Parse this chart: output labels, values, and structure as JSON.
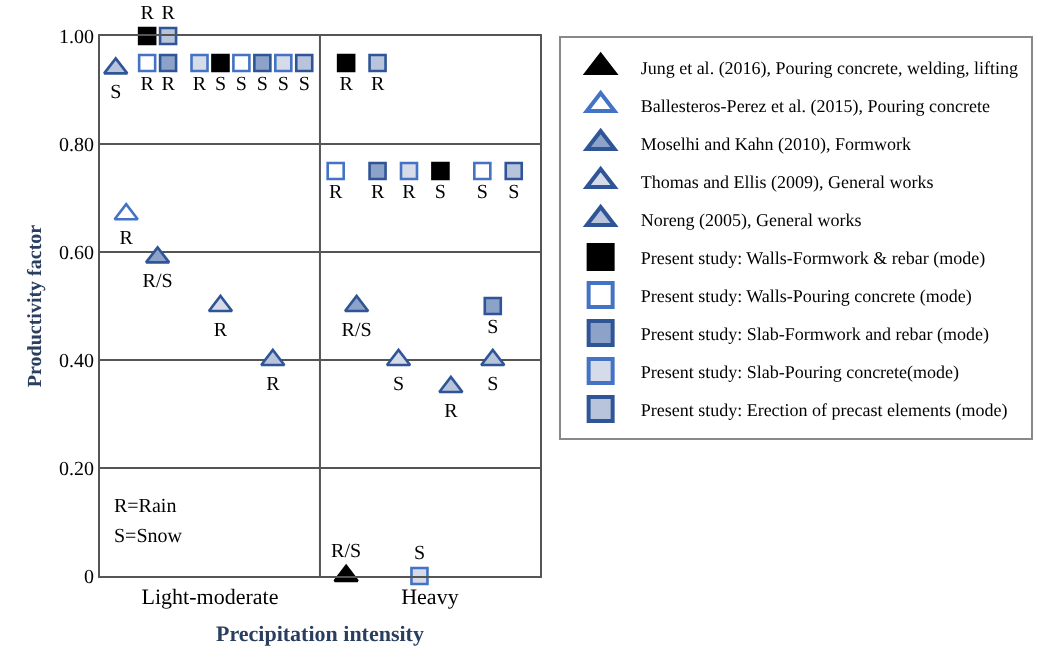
{
  "chart_data": {
    "type": "scatter",
    "xlabel": "Precipitation intensity",
    "ylabel": "Productivity factor",
    "categories": [
      null,
      null,
      null,
      null,
      null,
      null,
      null,
      null,
      null,
      null,
      "Light-moderate",
      null,
      null,
      null,
      null,
      null,
      null,
      null,
      null,
      null,
      null,
      null,
      null,
      null,
      null,
      null,
      null,
      null,
      null,
      null,
      null,
      "Heavy",
      null,
      null,
      null,
      null,
      null,
      null,
      null,
      null,
      null,
      null
    ],
    "ylim": [
      0,
      1
    ],
    "yticks": [
      {
        "value": 0,
        "label": "0"
      },
      {
        "value": 0.2,
        "label": "0.20"
      },
      {
        "value": 0.4,
        "label": "0.40"
      },
      {
        "value": 0.6,
        "label": "0.60"
      },
      {
        "value": 0.8,
        "label": "0.80"
      },
      {
        "value": 1.0,
        "label": "1.00"
      }
    ],
    "grid": "y",
    "legend": "right",
    "annotations": [
      "R=Rain",
      "S=Snow"
    ],
    "series": [
      {
        "name": "Jung et al. (2016), Pouring concrete, welding, lifting",
        "marker": "triangle",
        "color": "#000000",
        "values": [
          null,
          null,
          null,
          null,
          null,
          null,
          null,
          null,
          null,
          null,
          null,
          null,
          null,
          null,
          null,
          null,
          null,
          null,
          null,
          null,
          null,
          null,
          null,
          0,
          null,
          null,
          null,
          null,
          null,
          null,
          null,
          null,
          null,
          null,
          null,
          null,
          null,
          null,
          null,
          null,
          null,
          null
        ],
        "value_labels": [
          null,
          null,
          null,
          null,
          null,
          null,
          null,
          null,
          null,
          null,
          null,
          null,
          null,
          null,
          null,
          null,
          null,
          null,
          null,
          null,
          null,
          null,
          null,
          "R/S",
          null,
          null,
          null,
          null,
          null,
          null,
          null,
          null,
          null,
          null,
          null,
          null,
          null,
          null,
          null,
          null,
          null,
          null
        ]
      },
      {
        "name": "Ballesteros-Perez et al. (2015), Pouring concrete",
        "marker": "triangle",
        "color": "#4472c4",
        "values": [
          null,
          null,
          0.67,
          null,
          null,
          null,
          null,
          null,
          null,
          null,
          null,
          null,
          null,
          null,
          null,
          null,
          null,
          null,
          null,
          null,
          null,
          null,
          null,
          null,
          null,
          null,
          null,
          null,
          null,
          null,
          null,
          null,
          null,
          null,
          null,
          null,
          null,
          null,
          null,
          null,
          null,
          null
        ],
        "value_labels": [
          null,
          null,
          "R",
          null,
          null,
          null,
          null,
          null,
          null,
          null,
          null,
          null,
          null,
          null,
          null,
          null,
          null,
          null,
          null,
          null,
          null,
          null,
          null,
          null,
          null,
          null,
          null,
          null,
          null,
          null,
          null,
          null,
          null,
          null,
          null,
          null,
          null,
          null,
          null,
          null,
          null,
          null
        ]
      },
      {
        "name": "Moselhi and Kahn (2010), Formwork",
        "marker": "triangle",
        "color": "#2f5597",
        "values": [
          null,
          null,
          null,
          null,
          null,
          0.59,
          null,
          null,
          null,
          null,
          null,
          null,
          null,
          null,
          null,
          null,
          null,
          null,
          null,
          null,
          null,
          null,
          null,
          null,
          0.5,
          null,
          null,
          null,
          null,
          null,
          null,
          null,
          null,
          null,
          null,
          null,
          null,
          null,
          null,
          null,
          null,
          null
        ],
        "value_labels": [
          null,
          null,
          null,
          null,
          null,
          "R/S",
          null,
          null,
          null,
          null,
          null,
          null,
          null,
          null,
          null,
          null,
          null,
          null,
          null,
          null,
          null,
          null,
          null,
          null,
          "R/S",
          null,
          null,
          null,
          null,
          null,
          null,
          null,
          null,
          null,
          null,
          null,
          null,
          null,
          null,
          null,
          null,
          null
        ]
      },
      {
        "name": "Thomas and Ellis (2009), General works",
        "marker": "triangle",
        "color": "#2f5597",
        "values": [
          null,
          null,
          null,
          null,
          null,
          null,
          null,
          null,
          null,
          null,
          null,
          0.5,
          null,
          null,
          null,
          null,
          null,
          null,
          null,
          null,
          null,
          null,
          null,
          null,
          null,
          null,
          null,
          null,
          0.4,
          null,
          null,
          null,
          null,
          null,
          null,
          null,
          null,
          null,
          null,
          null,
          null,
          null
        ],
        "value_labels": [
          null,
          null,
          null,
          null,
          null,
          null,
          null,
          null,
          null,
          null,
          null,
          "R",
          null,
          null,
          null,
          null,
          null,
          null,
          null,
          null,
          null,
          null,
          null,
          null,
          null,
          null,
          null,
          null,
          "S",
          null,
          null,
          null,
          null,
          null,
          null,
          null,
          null,
          null,
          null,
          null,
          null,
          null
        ]
      },
      {
        "name": "Noreng (2005), General works",
        "marker": "triangle",
        "color": "#2f5597",
        "values": [
          null,
          0.94,
          null,
          null,
          null,
          null,
          null,
          null,
          null,
          null,
          null,
          null,
          null,
          null,
          null,
          null,
          0.4,
          null,
          null,
          null,
          null,
          null,
          null,
          null,
          null,
          null,
          null,
          null,
          null,
          null,
          null,
          null,
          null,
          0.35,
          null,
          null,
          null,
          0.4,
          null,
          null,
          null,
          null
        ],
        "value_labels": [
          null,
          "S",
          null,
          null,
          null,
          null,
          null,
          null,
          null,
          null,
          null,
          null,
          null,
          null,
          null,
          null,
          "R",
          null,
          null,
          null,
          null,
          null,
          null,
          null,
          null,
          null,
          null,
          null,
          null,
          null,
          null,
          null,
          null,
          "R",
          null,
          null,
          null,
          "S",
          null,
          null,
          null,
          null
        ]
      },
      {
        "name": "Present study: Walls-Formwork & rebar (mode)",
        "marker": "square",
        "color": "#000000",
        "values": [
          null,
          null,
          null,
          null,
          1.0,
          null,
          null,
          null,
          null,
          null,
          null,
          0.95,
          null,
          null,
          null,
          null,
          null,
          null,
          null,
          null,
          null,
          null,
          null,
          0.95,
          null,
          null,
          null,
          null,
          null,
          null,
          null,
          null,
          0.75,
          null,
          null,
          null,
          null,
          null,
          null,
          null,
          null,
          null
        ],
        "value_labels": [
          null,
          null,
          null,
          null,
          "R",
          null,
          null,
          null,
          null,
          null,
          null,
          "S",
          null,
          null,
          null,
          null,
          null,
          null,
          null,
          null,
          null,
          null,
          null,
          "R",
          null,
          null,
          null,
          null,
          null,
          null,
          null,
          null,
          "S",
          null,
          null,
          null,
          null,
          null,
          null,
          null,
          null,
          null
        ]
      },
      {
        "name": "Present study: Walls-Pouring concrete (mode)",
        "marker": "square",
        "color": "#4472c4",
        "values": [
          null,
          null,
          null,
          null,
          0.95,
          null,
          null,
          null,
          null,
          null,
          null,
          null,
          null,
          0.95,
          null,
          null,
          null,
          null,
          null,
          null,
          null,
          null,
          0.75,
          null,
          null,
          null,
          null,
          null,
          null,
          null,
          null,
          null,
          null,
          null,
          null,
          null,
          0.75,
          null,
          null,
          null,
          null,
          null
        ],
        "value_labels": [
          null,
          null,
          null,
          null,
          "R",
          null,
          null,
          null,
          null,
          null,
          null,
          null,
          null,
          "S",
          null,
          null,
          null,
          null,
          null,
          null,
          null,
          null,
          "R",
          null,
          null,
          null,
          null,
          null,
          null,
          null,
          null,
          null,
          null,
          null,
          null,
          null,
          "S",
          null,
          null,
          null,
          null,
          null
        ]
      },
      {
        "name": "Present study: Slab-Formwork and rebar (mode)",
        "marker": "square",
        "color": "#2f5597",
        "values": [
          null,
          null,
          null,
          null,
          null,
          null,
          0.95,
          null,
          null,
          null,
          null,
          null,
          null,
          null,
          null,
          0.95,
          null,
          null,
          null,
          null,
          null,
          null,
          null,
          null,
          null,
          null,
          0.75,
          null,
          null,
          null,
          null,
          null,
          null,
          null,
          null,
          null,
          null,
          0.5,
          null,
          null,
          null,
          null
        ],
        "value_labels": [
          null,
          null,
          null,
          null,
          null,
          null,
          "R",
          null,
          null,
          null,
          null,
          null,
          null,
          null,
          null,
          "S",
          null,
          null,
          null,
          null,
          null,
          null,
          null,
          null,
          null,
          null,
          "R",
          null,
          null,
          null,
          null,
          null,
          null,
          null,
          null,
          null,
          null,
          "S",
          null,
          null,
          null,
          null
        ]
      },
      {
        "name": "Present study: Slab-Pouring concrete(mode)",
        "marker": "square",
        "color": "#4472c4",
        "values": [
          null,
          null,
          null,
          null,
          null,
          null,
          null,
          null,
          null,
          0.95,
          null,
          null,
          null,
          null,
          null,
          null,
          null,
          0.95,
          null,
          null,
          null,
          null,
          null,
          null,
          null,
          null,
          null,
          null,
          null,
          0.75,
          0,
          null,
          null,
          null,
          null,
          null,
          null,
          null,
          null,
          null,
          null,
          null
        ],
        "value_labels": [
          null,
          null,
          null,
          null,
          null,
          null,
          null,
          null,
          null,
          "R",
          null,
          null,
          null,
          null,
          null,
          null,
          null,
          "S",
          null,
          null,
          null,
          null,
          null,
          null,
          null,
          null,
          null,
          null,
          null,
          "R",
          "S",
          null,
          null,
          null,
          null,
          null,
          null,
          null,
          null,
          null,
          null,
          null
        ]
      },
      {
        "name": "Present study: Erection of precast elements (mode)",
        "marker": "square",
        "color": "#2f5597",
        "values": [
          null,
          null,
          null,
          null,
          null,
          null,
          1.0,
          null,
          null,
          null,
          null,
          null,
          null,
          null,
          null,
          null,
          null,
          null,
          null,
          0.95,
          null,
          null,
          null,
          null,
          null,
          null,
          0.95,
          null,
          null,
          null,
          null,
          null,
          null,
          null,
          null,
          null,
          null,
          null,
          null,
          0.75,
          null,
          null
        ],
        "value_labels": [
          null,
          null,
          null,
          null,
          null,
          null,
          "R",
          null,
          null,
          null,
          null,
          null,
          null,
          null,
          null,
          null,
          null,
          null,
          null,
          "S",
          null,
          null,
          null,
          null,
          null,
          null,
          "R",
          null,
          null,
          null,
          null,
          null,
          null,
          null,
          null,
          null,
          null,
          null,
          null,
          "S",
          null,
          null
        ]
      }
    ]
  }
}
